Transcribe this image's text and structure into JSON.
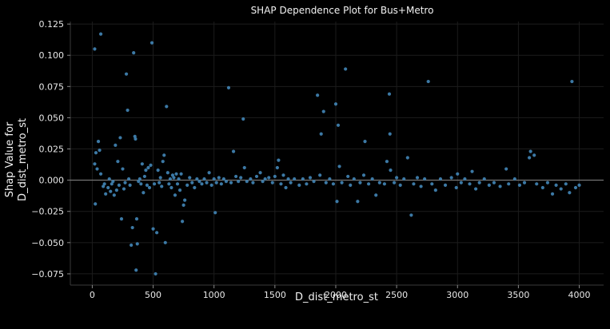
{
  "chart_data": {
    "type": "scatter",
    "title": "SHAP Dependence Plot for Bus+Metro",
    "xlabel": "D_dist_metro_st",
    "ylabel_line1": "Shap Value for",
    "ylabel_line2": "D_dist_metro_st",
    "xlim": [
      -180,
      4200
    ],
    "ylim": [
      -0.084,
      0.127
    ],
    "xticks": [
      0,
      500,
      1000,
      1500,
      2000,
      2500,
      3000,
      3500,
      4000
    ],
    "yticks": [
      -0.075,
      -0.05,
      -0.025,
      0.0,
      0.025,
      0.05,
      0.075,
      0.1,
      0.125
    ],
    "xtick_labels": [
      "0",
      "500",
      "1000",
      "1500",
      "2000",
      "2500",
      "3000",
      "3500",
      "4000"
    ],
    "ytick_labels": [
      "−0.075",
      "−0.050",
      "−0.025",
      "0.000",
      "0.025",
      "0.050",
      "0.075",
      "0.100",
      "0.125"
    ],
    "grid": true,
    "zero_line": true,
    "point_color": "#3f7fae",
    "points": [
      [
        20,
        0.105
      ],
      [
        70,
        0.117
      ],
      [
        20,
        0.013
      ],
      [
        25,
        -0.019
      ],
      [
        30,
        0.022
      ],
      [
        40,
        0.009
      ],
      [
        50,
        0.031
      ],
      [
        60,
        0.024
      ],
      [
        70,
        0.005
      ],
      [
        90,
        -0.005
      ],
      [
        100,
        -0.003
      ],
      [
        110,
        -0.011
      ],
      [
        130,
        -0.006
      ],
      [
        140,
        0.001
      ],
      [
        150,
        -0.009
      ],
      [
        160,
        -0.003
      ],
      [
        170,
        -0.001
      ],
      [
        180,
        -0.012
      ],
      [
        190,
        0.028
      ],
      [
        200,
        -0.008
      ],
      [
        210,
        0.015
      ],
      [
        220,
        -0.004
      ],
      [
        230,
        0.034
      ],
      [
        240,
        -0.031
      ],
      [
        250,
        0.009
      ],
      [
        260,
        -0.007
      ],
      [
        270,
        -0.002
      ],
      [
        280,
        0.085
      ],
      [
        290,
        0.056
      ],
      [
        300,
        0.001
      ],
      [
        310,
        -0.004
      ],
      [
        320,
        -0.052
      ],
      [
        330,
        -0.038
      ],
      [
        340,
        0.102
      ],
      [
        350,
        0.035
      ],
      [
        355,
        0.033
      ],
      [
        360,
        -0.072
      ],
      [
        365,
        -0.031
      ],
      [
        370,
        -0.051
      ],
      [
        380,
        -0.001
      ],
      [
        390,
        0.001
      ],
      [
        400,
        -0.003
      ],
      [
        410,
        0.013
      ],
      [
        420,
        -0.01
      ],
      [
        430,
        0.003
      ],
      [
        440,
        0.008
      ],
      [
        450,
        -0.004
      ],
      [
        460,
        0.01
      ],
      [
        470,
        -0.006
      ],
      [
        480,
        0.012
      ],
      [
        490,
        0.11
      ],
      [
        500,
        -0.039
      ],
      [
        510,
        -0.003
      ],
      [
        520,
        -0.075
      ],
      [
        530,
        -0.042
      ],
      [
        540,
        0.008
      ],
      [
        550,
        -0.002
      ],
      [
        560,
        0.002
      ],
      [
        570,
        -0.005
      ],
      [
        580,
        0.015
      ],
      [
        590,
        0.02
      ],
      [
        600,
        -0.05
      ],
      [
        610,
        0.059
      ],
      [
        620,
        0.006
      ],
      [
        630,
        -0.003
      ],
      [
        640,
        0.001
      ],
      [
        650,
        -0.006
      ],
      [
        660,
        0.004
      ],
      [
        670,
        0.002
      ],
      [
        680,
        -0.012
      ],
      [
        690,
        0.005
      ],
      [
        700,
        -0.003
      ],
      [
        710,
        0.001
      ],
      [
        720,
        -0.008
      ],
      [
        730,
        0.005
      ],
      [
        740,
        -0.033
      ],
      [
        750,
        -0.02
      ],
      [
        760,
        -0.016
      ],
      [
        780,
        -0.004
      ],
      [
        800,
        0.002
      ],
      [
        820,
        -0.002
      ],
      [
        840,
        -0.006
      ],
      [
        860,
        0.001
      ],
      [
        880,
        -0.001
      ],
      [
        900,
        -0.003
      ],
      [
        920,
        0.001
      ],
      [
        940,
        -0.002
      ],
      [
        960,
        0.006
      ],
      [
        980,
        -0.004
      ],
      [
        1000,
        0.001
      ],
      [
        1010,
        -0.026
      ],
      [
        1020,
        -0.002
      ],
      [
        1040,
        0.002
      ],
      [
        1060,
        -0.003
      ],
      [
        1080,
        0.001
      ],
      [
        1100,
        -0.001
      ],
      [
        1120,
        0.074
      ],
      [
        1140,
        -0.002
      ],
      [
        1160,
        0.023
      ],
      [
        1180,
        0.003
      ],
      [
        1200,
        -0.001
      ],
      [
        1220,
        0.002
      ],
      [
        1240,
        0.049
      ],
      [
        1250,
        0.01
      ],
      [
        1270,
        -0.001
      ],
      [
        1300,
        0.001
      ],
      [
        1320,
        -0.002
      ],
      [
        1350,
        0.003
      ],
      [
        1380,
        0.006
      ],
      [
        1400,
        -0.001
      ],
      [
        1420,
        0.001
      ],
      [
        1450,
        0.002
      ],
      [
        1480,
        -0.002
      ],
      [
        1500,
        0.003
      ],
      [
        1520,
        0.01
      ],
      [
        1530,
        0.016
      ],
      [
        1550,
        -0.003
      ],
      [
        1570,
        0.004
      ],
      [
        1590,
        -0.006
      ],
      [
        1610,
        0.001
      ],
      [
        1630,
        -0.002
      ],
      [
        1660,
        0.001
      ],
      [
        1700,
        -0.004
      ],
      [
        1730,
        0.001
      ],
      [
        1760,
        -0.003
      ],
      [
        1790,
        0.002
      ],
      [
        1820,
        -0.001
      ],
      [
        1850,
        0.068
      ],
      [
        1870,
        0.004
      ],
      [
        1880,
        0.037
      ],
      [
        1900,
        0.055
      ],
      [
        1920,
        -0.002
      ],
      [
        1950,
        0.001
      ],
      [
        1980,
        -0.003
      ],
      [
        2000,
        0.061
      ],
      [
        2010,
        -0.017
      ],
      [
        2020,
        0.044
      ],
      [
        2030,
        0.011
      ],
      [
        2050,
        -0.002
      ],
      [
        2080,
        0.089
      ],
      [
        2100,
        0.003
      ],
      [
        2120,
        -0.004
      ],
      [
        2150,
        0.001
      ],
      [
        2180,
        -0.017
      ],
      [
        2200,
        -0.002
      ],
      [
        2230,
        0.004
      ],
      [
        2240,
        0.031
      ],
      [
        2270,
        -0.003
      ],
      [
        2300,
        0.001
      ],
      [
        2330,
        -0.012
      ],
      [
        2360,
        -0.002
      ],
      [
        2400,
        -0.003
      ],
      [
        2420,
        0.015
      ],
      [
        2440,
        0.069
      ],
      [
        2445,
        0.037
      ],
      [
        2450,
        0.008
      ],
      [
        2480,
        -0.002
      ],
      [
        2500,
        0.002
      ],
      [
        2530,
        -0.004
      ],
      [
        2560,
        0.001
      ],
      [
        2590,
        0.018
      ],
      [
        2620,
        -0.028
      ],
      [
        2640,
        -0.003
      ],
      [
        2670,
        0.002
      ],
      [
        2700,
        -0.005
      ],
      [
        2730,
        0.001
      ],
      [
        2760,
        0.079
      ],
      [
        2790,
        -0.003
      ],
      [
        2820,
        -0.008
      ],
      [
        2860,
        0.001
      ],
      [
        2900,
        -0.004
      ],
      [
        2950,
        0.002
      ],
      [
        2990,
        -0.006
      ],
      [
        3000,
        0.005
      ],
      [
        3030,
        -0.002
      ],
      [
        3060,
        0.001
      ],
      [
        3100,
        -0.003
      ],
      [
        3120,
        0.007
      ],
      [
        3150,
        -0.007
      ],
      [
        3180,
        -0.002
      ],
      [
        3220,
        0.001
      ],
      [
        3260,
        -0.004
      ],
      [
        3300,
        -0.002
      ],
      [
        3350,
        -0.005
      ],
      [
        3400,
        0.009
      ],
      [
        3420,
        -0.003
      ],
      [
        3470,
        0.001
      ],
      [
        3510,
        -0.004
      ],
      [
        3550,
        -0.002
      ],
      [
        3590,
        0.018
      ],
      [
        3600,
        0.023
      ],
      [
        3630,
        0.02
      ],
      [
        3650,
        -0.003
      ],
      [
        3700,
        -0.006
      ],
      [
        3740,
        -0.002
      ],
      [
        3780,
        -0.011
      ],
      [
        3810,
        -0.004
      ],
      [
        3850,
        -0.007
      ],
      [
        3890,
        -0.003
      ],
      [
        3920,
        -0.01
      ],
      [
        3940,
        0.079
      ],
      [
        3970,
        -0.006
      ],
      [
        4000,
        -0.004
      ]
    ]
  }
}
